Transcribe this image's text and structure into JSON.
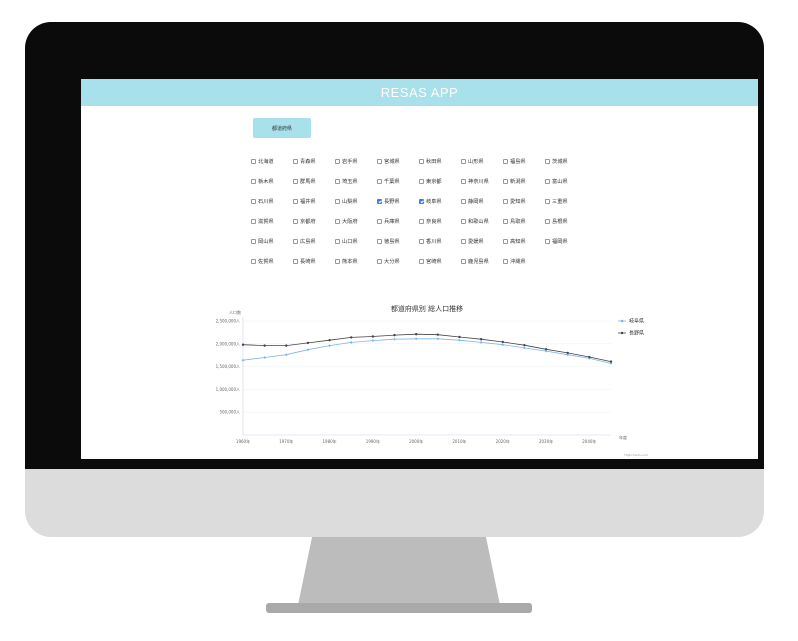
{
  "app": {
    "title": "RESAS APP"
  },
  "section_button": {
    "label": "都道府県"
  },
  "prefectures": [
    {
      "label": "北海道",
      "checked": false
    },
    {
      "label": "青森県",
      "checked": false
    },
    {
      "label": "岩手県",
      "checked": false
    },
    {
      "label": "宮城県",
      "checked": false
    },
    {
      "label": "秋田県",
      "checked": false
    },
    {
      "label": "山形県",
      "checked": false
    },
    {
      "label": "福島県",
      "checked": false
    },
    {
      "label": "茨城県",
      "checked": false
    },
    {
      "label": "栃木県",
      "checked": false
    },
    {
      "label": "群馬県",
      "checked": false
    },
    {
      "label": "埼玉県",
      "checked": false
    },
    {
      "label": "千葉県",
      "checked": false
    },
    {
      "label": "東京都",
      "checked": false
    },
    {
      "label": "神奈川県",
      "checked": false
    },
    {
      "label": "新潟県",
      "checked": false
    },
    {
      "label": "富山県",
      "checked": false
    },
    {
      "label": "石川県",
      "checked": false
    },
    {
      "label": "福井県",
      "checked": false
    },
    {
      "label": "山梨県",
      "checked": false
    },
    {
      "label": "長野県",
      "checked": true
    },
    {
      "label": "岐阜県",
      "checked": true
    },
    {
      "label": "静岡県",
      "checked": false
    },
    {
      "label": "愛知県",
      "checked": false
    },
    {
      "label": "三重県",
      "checked": false
    },
    {
      "label": "滋賀県",
      "checked": false
    },
    {
      "label": "京都府",
      "checked": false
    },
    {
      "label": "大阪府",
      "checked": false
    },
    {
      "label": "兵庫県",
      "checked": false
    },
    {
      "label": "奈良県",
      "checked": false
    },
    {
      "label": "和歌山県",
      "checked": false
    },
    {
      "label": "鳥取県",
      "checked": false
    },
    {
      "label": "島根県",
      "checked": false
    },
    {
      "label": "岡山県",
      "checked": false
    },
    {
      "label": "広島県",
      "checked": false
    },
    {
      "label": "山口県",
      "checked": false
    },
    {
      "label": "徳島県",
      "checked": false
    },
    {
      "label": "香川県",
      "checked": false
    },
    {
      "label": "愛媛県",
      "checked": false
    },
    {
      "label": "高知県",
      "checked": false
    },
    {
      "label": "福岡県",
      "checked": false
    },
    {
      "label": "佐賀県",
      "checked": false
    },
    {
      "label": "長崎県",
      "checked": false
    },
    {
      "label": "熊本県",
      "checked": false
    },
    {
      "label": "大分県",
      "checked": false
    },
    {
      "label": "宮崎県",
      "checked": false
    },
    {
      "label": "鹿児島県",
      "checked": false
    },
    {
      "label": "沖縄県",
      "checked": false
    }
  ],
  "colors": {
    "header": "#a8e0ec",
    "series_gifu": "#7cb5ec",
    "series_nagano": "#434348",
    "checkbox_checked": "#3b7ddd"
  },
  "chart_data": {
    "type": "line",
    "title": "都道府県別 総人口推移",
    "ylabel": "人口数",
    "xlabel": "年度",
    "credits": "Highcharts.com",
    "ylim": [
      0,
      2500000
    ],
    "xlim": [
      1960,
      2045
    ],
    "y_ticks": [
      {
        "value": 500000,
        "label": "500,000人"
      },
      {
        "value": 1000000,
        "label": "1,000,000人"
      },
      {
        "value": 1500000,
        "label": "1,500,000人"
      },
      {
        "value": 2000000,
        "label": "2,000,000人"
      },
      {
        "value": 2500000,
        "label": "2,500,000人"
      }
    ],
    "x_ticks": [
      {
        "value": 1960,
        "label": "1960年"
      },
      {
        "value": 1970,
        "label": "1970年"
      },
      {
        "value": 1980,
        "label": "1980年"
      },
      {
        "value": 1990,
        "label": "1990年"
      },
      {
        "value": 2000,
        "label": "2000年"
      },
      {
        "value": 2010,
        "label": "2010年"
      },
      {
        "value": 2020,
        "label": "2020年"
      },
      {
        "value": 2030,
        "label": "2030年"
      },
      {
        "value": 2040,
        "label": "2040年"
      }
    ],
    "legend_position": "right",
    "x": [
      1960,
      1965,
      1970,
      1975,
      1980,
      1985,
      1990,
      1995,
      2000,
      2005,
      2010,
      2015,
      2020,
      2025,
      2030,
      2035,
      2040,
      2045
    ],
    "series": [
      {
        "name": "岐阜県",
        "color": "#7cb5ec",
        "values": [
          1640000,
          1700000,
          1760000,
          1870000,
          1960000,
          2030000,
          2070000,
          2100000,
          2110000,
          2110000,
          2080000,
          2030000,
          1980000,
          1910000,
          1840000,
          1760000,
          1680000,
          1570000
        ]
      },
      {
        "name": "長野県",
        "color": "#434348",
        "values": [
          1980000,
          1960000,
          1960000,
          2020000,
          2080000,
          2140000,
          2160000,
          2190000,
          2210000,
          2200000,
          2150000,
          2100000,
          2040000,
          1970000,
          1880000,
          1800000,
          1710000,
          1610000
        ]
      }
    ]
  }
}
